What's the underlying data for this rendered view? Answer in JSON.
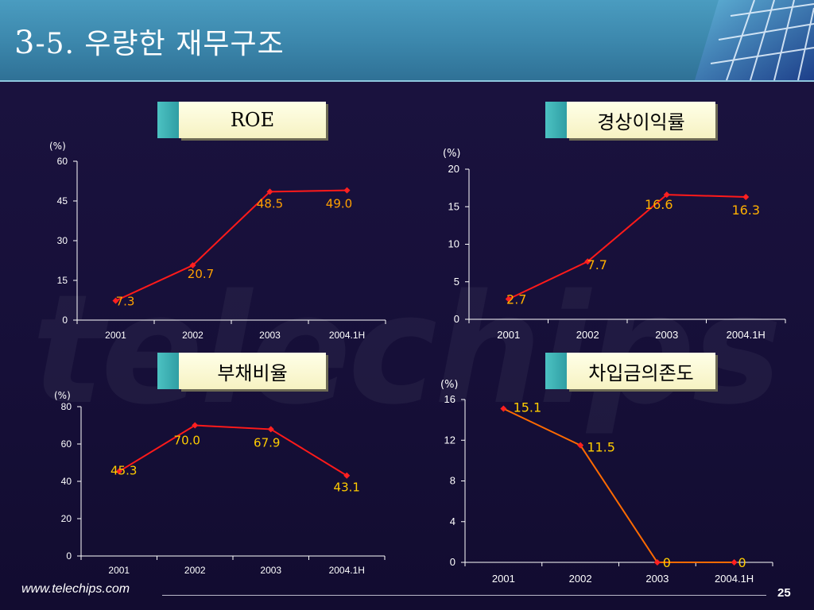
{
  "header": {
    "title_num": "3",
    "title_text": "-5. 우량한 재무구조"
  },
  "footer": {
    "url": "www.telechips.com",
    "page": "25"
  },
  "colors": {
    "accent": "#ff1a1a",
    "label": "#ffb000",
    "axis": "#ffffff"
  },
  "chart_data": [
    {
      "id": "roe",
      "type": "line",
      "title": "ROE",
      "unit": "(%)",
      "categories": [
        "2001",
        "2002",
        "2003",
        "2004.1H"
      ],
      "values": [
        7.3,
        20.7,
        48.5,
        49.0
      ],
      "labels": [
        "7.3",
        "20.7",
        "48.5",
        "49.0"
      ],
      "ylim": [
        0,
        60
      ],
      "yticks": [
        0,
        15,
        30,
        45,
        60
      ],
      "color": "#ff1a1a",
      "label_color": "#ffa000"
    },
    {
      "id": "op",
      "type": "line",
      "title": "경상이익률",
      "unit": "(%)",
      "categories": [
        "2001",
        "2002",
        "2003",
        "2004.1H"
      ],
      "values": [
        2.7,
        7.7,
        16.6,
        16.3
      ],
      "labels": [
        "2.7",
        "7.7",
        "16.6",
        "16.3"
      ],
      "ylim": [
        0,
        20
      ],
      "yticks": [
        0,
        5,
        10,
        15,
        20
      ],
      "color": "#ff1a1a",
      "label_color": "#ffb000"
    },
    {
      "id": "debt",
      "type": "line",
      "title": "부채비율",
      "unit": "(%)",
      "categories": [
        "2001",
        "2002",
        "2003",
        "2004.1H"
      ],
      "values": [
        45.3,
        70.0,
        67.9,
        43.1
      ],
      "labels": [
        "45.3",
        "70.0",
        "67.9",
        "43.1"
      ],
      "ylim": [
        0,
        80
      ],
      "yticks": [
        0,
        20,
        40,
        60,
        80
      ],
      "color": "#ff1a1a",
      "label_color": "#ffcc00"
    },
    {
      "id": "borrow",
      "type": "line",
      "title": "차입금의존도",
      "unit": "(%)",
      "categories": [
        "2001",
        "2002",
        "2003",
        "2004.1H"
      ],
      "values": [
        15.1,
        11.5,
        0,
        0
      ],
      "labels": [
        "15.1",
        "11.5",
        "0",
        "0"
      ],
      "ylim": [
        0,
        16
      ],
      "yticks": [
        0,
        4,
        8,
        12,
        16
      ],
      "color": "#ff6a00",
      "label_color": "#ffcc00"
    }
  ]
}
